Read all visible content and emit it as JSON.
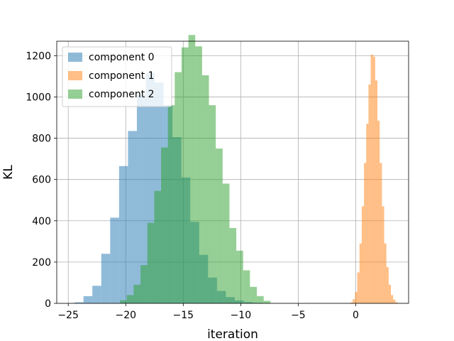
{
  "chart_data": {
    "type": "histogram",
    "title": "",
    "xlabel": "iteration",
    "ylabel": "KL",
    "xlim": [
      -26,
      4.6
    ],
    "ylim": [
      0,
      1270
    ],
    "xticks": [
      -25,
      -20,
      -15,
      -10,
      -5,
      0
    ],
    "yticks": [
      0,
      200,
      400,
      600,
      800,
      1000,
      1200
    ],
    "grid": true,
    "legend_position": "upper-left",
    "series": [
      {
        "name": "component 0",
        "color": "#1f77b4",
        "alpha": 0.5,
        "bin_start": -24.45,
        "bin_width": 0.774,
        "counts": [
          5,
          35,
          85,
          240,
          415,
          665,
          835,
          1010,
          1115,
          1070,
          960,
          805,
          610,
          395,
          235,
          125,
          60,
          30,
          14,
          6,
          3
        ]
      },
      {
        "name": "component 1",
        "color": "#ff7f0e",
        "alpha": 0.5,
        "bin_start": -0.45,
        "bin_width": 0.195,
        "counts": [
          5,
          20,
          55,
          150,
          290,
          470,
          680,
          870,
          1060,
          1205,
          1195,
          1080,
          885,
          680,
          470,
          290,
          175,
          90,
          40,
          18,
          6
        ]
      },
      {
        "name": "component 2",
        "color": "#2ca02c",
        "alpha": 0.5,
        "bin_start": -20.5,
        "bin_width": 0.595,
        "counts": [
          15,
          40,
          90,
          185,
          390,
          545,
          755,
          960,
          1120,
          1240,
          1300,
          1245,
          1105,
          960,
          750,
          580,
          365,
          255,
          160,
          80,
          35,
          12
        ]
      }
    ]
  }
}
